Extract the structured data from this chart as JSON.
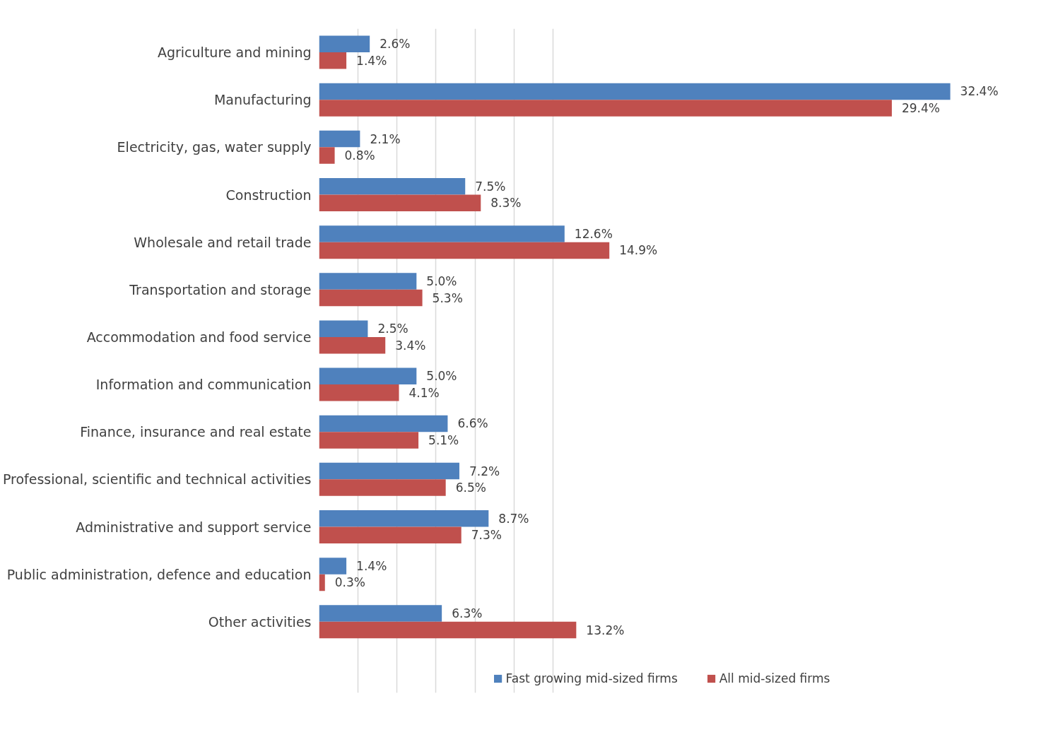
{
  "chart_data": {
    "type": "bar",
    "orientation": "horizontal",
    "categories": [
      "Agriculture and mining",
      "Manufacturing",
      "Electricity, gas, water supply",
      "Construction",
      "Wholesale and retail trade",
      "Transportation and storage",
      "Accommodation and food service",
      "Information and communication",
      "Finance, insurance and real estate",
      "Professional, scientific and technical activities",
      "Administrative and support service",
      "Public administration, defence and education",
      "Other activities"
    ],
    "series": [
      {
        "name": "Fast growing mid-sized firms",
        "color": "#4f81bd",
        "values": [
          2.6,
          32.4,
          2.1,
          7.5,
          12.6,
          5.0,
          2.5,
          5.0,
          6.6,
          7.2,
          8.7,
          1.4,
          6.3
        ],
        "value_labels": [
          "2.6%",
          "32.4%",
          "2.1%",
          "7.5%",
          "12.6%",
          "5.0%",
          "2.5%",
          "5.0%",
          "6.6%",
          "7.2%",
          "8.7%",
          "1.4%",
          "6.3%"
        ]
      },
      {
        "name": "All mid-sized firms",
        "color": "#c0504d",
        "values": [
          1.4,
          29.4,
          0.8,
          8.3,
          14.9,
          5.3,
          3.4,
          4.1,
          5.1,
          6.5,
          7.3,
          0.3,
          13.2
        ],
        "value_labels": [
          "1.4%",
          "29.4%",
          "0.8%",
          "8.3%",
          "14.9%",
          "5.3%",
          "3.4%",
          "4.1%",
          "5.1%",
          "6.5%",
          "7.3%",
          "0.3%",
          "13.2%"
        ]
      }
    ],
    "tick_labels": "y",
    "grid": "x",
    "legend": "bottom"
  }
}
